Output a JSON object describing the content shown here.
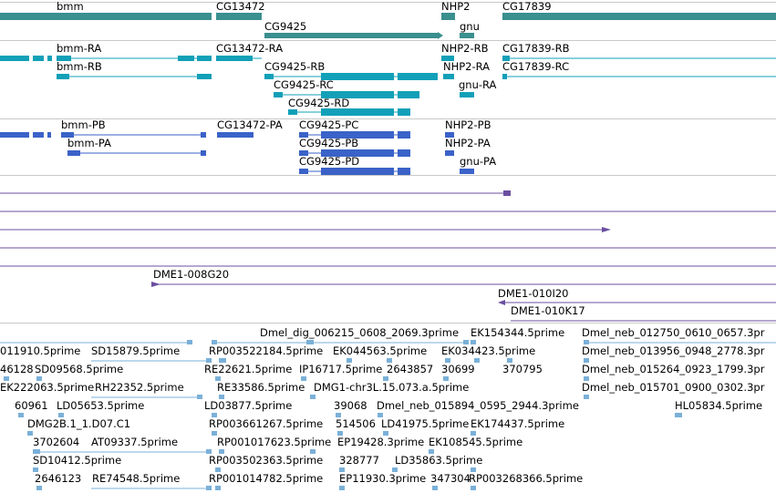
{
  "colors": {
    "gene": "#3a8f8f",
    "transcript": "#12a0b8",
    "protein": "#3a62c8",
    "clone": "#6b4fa0",
    "est": "#7ab0d8",
    "separator": "#c9c9c9"
  },
  "gene_track": {
    "genes": [
      {
        "label": "bmm"
      },
      {
        "label": "CG13472"
      },
      {
        "label": "CG9425"
      },
      {
        "label": "NHP2"
      },
      {
        "label": "gnu"
      },
      {
        "label": "CG17839"
      }
    ]
  },
  "transcript_track": {
    "transcripts": [
      {
        "label": "bmm-RA"
      },
      {
        "label": "bmm-RB"
      },
      {
        "label": "CG13472-RA"
      },
      {
        "label": "CG9425-RB"
      },
      {
        "label": "CG9425-RC"
      },
      {
        "label": "CG9425-RD"
      },
      {
        "label": "NHP2-RB"
      },
      {
        "label": "NHP2-RA"
      },
      {
        "label": "gnu-RA"
      },
      {
        "label": "CG17839-RB"
      },
      {
        "label": "CG17839-RC"
      }
    ]
  },
  "protein_track": {
    "proteins": [
      {
        "label": "bmm-PB"
      },
      {
        "label": "bmm-PA"
      },
      {
        "label": "CG13472-PA"
      },
      {
        "label": "CG9425-PC"
      },
      {
        "label": "CG9425-PB"
      },
      {
        "label": "CG9425-PD"
      },
      {
        "label": "NHP2-PB"
      },
      {
        "label": "NHP2-PA"
      },
      {
        "label": "gnu-PA"
      }
    ]
  },
  "clone_track": {
    "clones": [
      {
        "label": "DME1-008G20"
      },
      {
        "label": "DME1-010I20"
      },
      {
        "label": "DME1-010K17"
      }
    ]
  },
  "est_track": {
    "ests": [
      {
        "label": "Dmel_dig_006215_0608_2069.3prime"
      },
      {
        "label": "EK154344.5prime"
      },
      {
        "label": "Dmel_neb_012750_0610_0657.3pr"
      },
      {
        "label": "011910.5prime"
      },
      {
        "label": "SD15879.5prime"
      },
      {
        "label": "RP003522184.5prime"
      },
      {
        "label": "EK044563.5prime"
      },
      {
        "label": "EK034423.5prime"
      },
      {
        "label": "Dmel_neb_013956_0948_2778.3pr"
      },
      {
        "label": "46128"
      },
      {
        "label": "SD09568.5prime"
      },
      {
        "label": "RE22621.5prime"
      },
      {
        "label": "IP16717.5prime"
      },
      {
        "label": "2643857"
      },
      {
        "label": "30699"
      },
      {
        "label": "370795"
      },
      {
        "label": "Dmel_neb_015264_0923_1799.3pr"
      },
      {
        "label": "EK222063.5prime"
      },
      {
        "label": "RH22352.5prime"
      },
      {
        "label": "RE33586.5prime"
      },
      {
        "label": "DMG1-chr3L.15.073.a.5prime"
      },
      {
        "label": "Dmel_neb_015701_0900_0302.3pr"
      },
      {
        "label": "60961"
      },
      {
        "label": "LD05653.5prime"
      },
      {
        "label": "LD03877.5prime"
      },
      {
        "label": "39068"
      },
      {
        "label": "Dmel_neb_015894_0595_2944.3prime"
      },
      {
        "label": "HL05834.5prime"
      },
      {
        "label": "DMG2B.1_1.D07.C1"
      },
      {
        "label": "RP003661267.5prime"
      },
      {
        "label": "514506"
      },
      {
        "label": "LD41975.5prime"
      },
      {
        "label": "EK174437.5prime"
      },
      {
        "label": "3702604"
      },
      {
        "label": "AT09337.5prime"
      },
      {
        "label": "RP001017623.5prime"
      },
      {
        "label": "EP19428.3prime"
      },
      {
        "label": "EK108545.5prime"
      },
      {
        "label": "SD10412.5prime"
      },
      {
        "label": "RP003502363.5prime"
      },
      {
        "label": "328777"
      },
      {
        "label": "LD35863.5prime"
      },
      {
        "label": "2646123"
      },
      {
        "label": "RE74548.5prime"
      },
      {
        "label": "RP001014782.5prime"
      },
      {
        "label": "EP11930.3prime"
      },
      {
        "label": "347304"
      },
      {
        "label": "RP003268366.5prime"
      }
    ]
  }
}
